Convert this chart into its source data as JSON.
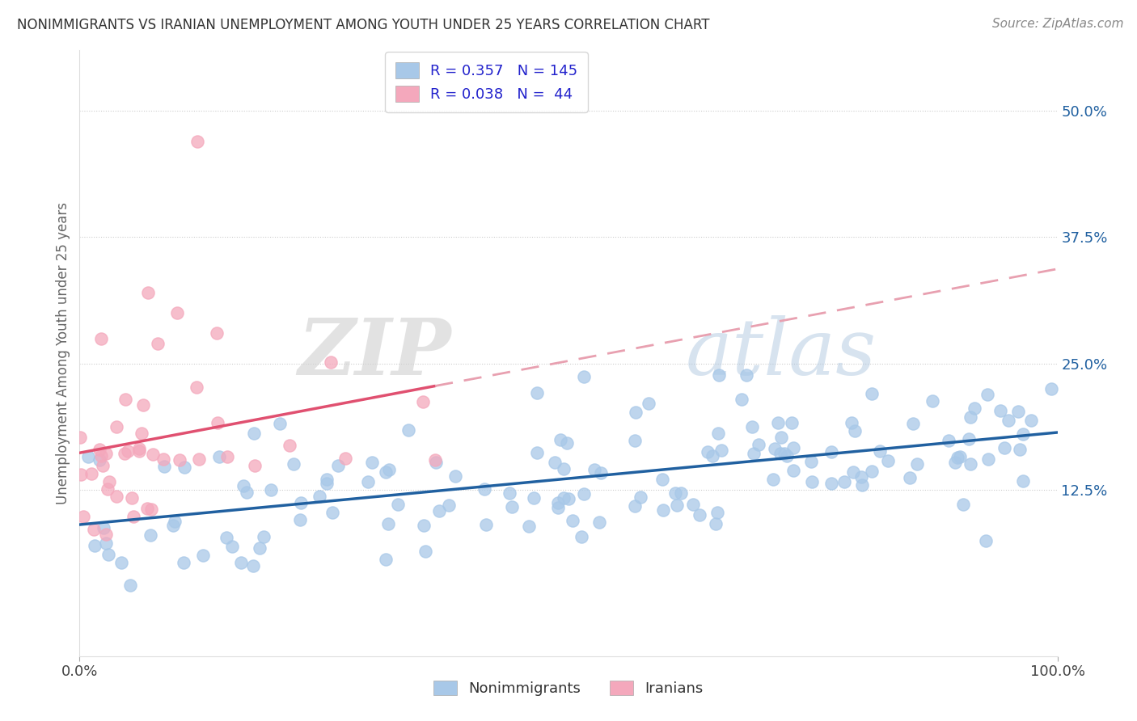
{
  "title": "NONIMMIGRANTS VS IRANIAN UNEMPLOYMENT AMONG YOUTH UNDER 25 YEARS CORRELATION CHART",
  "source": "Source: ZipAtlas.com",
  "ylabel": "Unemployment Among Youth under 25 years",
  "xlim": [
    0,
    1
  ],
  "ylim": [
    -0.04,
    0.56
  ],
  "right_ytick_labels": [
    "12.5%",
    "25.0%",
    "37.5%",
    "50.0%"
  ],
  "right_ytick_vals": [
    0.125,
    0.25,
    0.375,
    0.5
  ],
  "blue_scatter_color": "#a8c8e8",
  "pink_scatter_color": "#f4a8bc",
  "blue_line_color": "#2060a0",
  "pink_solid_color": "#e05070",
  "pink_dash_color": "#e8a0b0",
  "watermark_text": "ZIPatlas",
  "n_nonimmigrant": 145,
  "n_iranian": 44
}
